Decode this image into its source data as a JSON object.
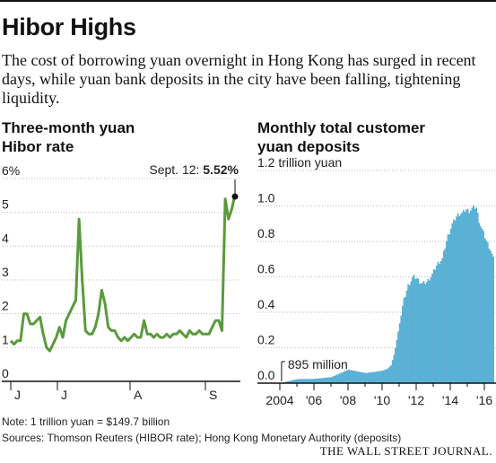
{
  "header": {
    "title": "Hibor Highs",
    "subtitle": "The cost of borrowing yuan overnight in Hong Kong has surged in recent days, while yuan bank deposits in the city have been falling, tightening liquidity."
  },
  "colors": {
    "hibor_line": "#5a9a3c",
    "deposit_bars": "#5bb6d9",
    "deposit_bar_edge": "#3f9cc4",
    "grid": "#bdbdbd"
  },
  "chart_data": [
    {
      "type": "line",
      "title": "Three-month yuan\nHibor rate",
      "yunit_label": "6%",
      "ylim": [
        0,
        6
      ],
      "yticks": [
        "6%",
        "5",
        "4",
        "3",
        "2",
        "1",
        "0"
      ],
      "xticks": [
        "J",
        "J",
        "A",
        "S"
      ],
      "grid": true,
      "annotation": {
        "label": "Sept. 12:",
        "value": "5.52%"
      },
      "series": [
        {
          "values": [
            1.2,
            1.1,
            1.2,
            1.2,
            2.0,
            2.0,
            1.7,
            1.7,
            1.8,
            1.9,
            1.4,
            1.0,
            0.9,
            1.1,
            1.3,
            1.6,
            1.3,
            1.8,
            2.0,
            2.2,
            2.4,
            4.8,
            3.0,
            1.5,
            1.4,
            1.4,
            1.6,
            2.0,
            2.7,
            2.3,
            1.6,
            1.5,
            1.5,
            1.3,
            1.2,
            1.3,
            1.2,
            1.3,
            1.4,
            1.3,
            1.3,
            1.8,
            1.4,
            1.4,
            1.3,
            1.4,
            1.3,
            1.3,
            1.4,
            1.3,
            1.4,
            1.4,
            1.5,
            1.4,
            1.3,
            1.5,
            1.4,
            1.4,
            1.5,
            1.4,
            1.4,
            1.4,
            1.6,
            1.8,
            1.8,
            1.5,
            5.4,
            4.8,
            5.1,
            5.52
          ]
        }
      ]
    },
    {
      "type": "bar",
      "title": "Monthly total customer\nyuan deposits",
      "yunit_label": "1.2 trillion yuan",
      "ylim": [
        0,
        1.2
      ],
      "yticks": [
        "1.2 trillion yuan",
        "1.0",
        "0.8",
        "0.6",
        "0.4",
        "0.2",
        "0.0"
      ],
      "xticks": [
        "2004",
        "'06",
        "'08",
        "'10",
        "'12",
        "'14",
        "'16"
      ],
      "x_range": [
        2004.0,
        2016.6
      ],
      "grid": true,
      "annotation": {
        "label": "895 million"
      },
      "series": [
        {
          "points": [
            [
              2004.1,
              0.001
            ],
            [
              2005.0,
              0.022
            ],
            [
              2006.0,
              0.023
            ],
            [
              2007.0,
              0.033
            ],
            [
              2008.0,
              0.075
            ],
            [
              2009.0,
              0.056
            ],
            [
              2009.5,
              0.062
            ],
            [
              2010.0,
              0.07
            ],
            [
              2010.3,
              0.08
            ],
            [
              2010.5,
              0.1
            ],
            [
              2010.7,
              0.17
            ],
            [
              2010.9,
              0.28
            ],
            [
              2011.2,
              0.45
            ],
            [
              2011.5,
              0.55
            ],
            [
              2011.8,
              0.6
            ],
            [
              2012.0,
              0.59
            ],
            [
              2012.3,
              0.56
            ],
            [
              2012.6,
              0.57
            ],
            [
              2012.9,
              0.61
            ],
            [
              2013.2,
              0.67
            ],
            [
              2013.5,
              0.7
            ],
            [
              2013.8,
              0.82
            ],
            [
              2014.1,
              0.9
            ],
            [
              2014.4,
              0.95
            ],
            [
              2014.7,
              0.96
            ],
            [
              2014.9,
              0.98
            ],
            [
              2015.1,
              0.97
            ],
            [
              2015.3,
              0.99
            ],
            [
              2015.5,
              0.99
            ],
            [
              2015.7,
              0.9
            ],
            [
              2015.9,
              0.85
            ],
            [
              2016.1,
              0.8
            ],
            [
              2016.3,
              0.76
            ],
            [
              2016.5,
              0.7
            ],
            [
              2016.6,
              0.67
            ]
          ]
        }
      ]
    }
  ],
  "footer": {
    "note": "Note: 1 trillion yuan = $149.7 billion",
    "sources": "Sources: Thomson Reuters (HIBOR rate); Hong Kong Monetary Authority (deposits)",
    "brand": "THE WALL STREET JOURNAL."
  }
}
